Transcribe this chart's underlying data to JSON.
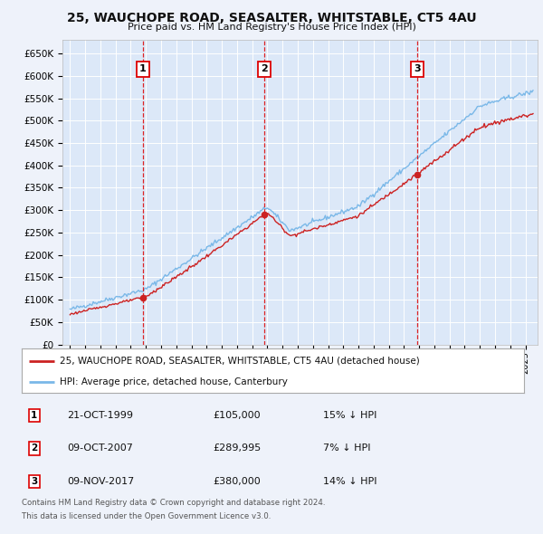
{
  "title": "25, WAUCHOPE ROAD, SEASALTER, WHITSTABLE, CT5 4AU",
  "subtitle": "Price paid vs. HM Land Registry's House Price Index (HPI)",
  "background_color": "#eef2fa",
  "plot_bg_color": "#dce8f8",
  "red_line_label": "25, WAUCHOPE ROAD, SEASALTER, WHITSTABLE, CT5 4AU (detached house)",
  "blue_line_label": "HPI: Average price, detached house, Canterbury",
  "sales": [
    {
      "num": 1,
      "date": "21-OCT-1999",
      "price": 105000,
      "pct": "15% ↓ HPI",
      "year": 1999.8
    },
    {
      "num": 2,
      "date": "09-OCT-2007",
      "price": 289995,
      "pct": "7% ↓ HPI",
      "year": 2007.77
    },
    {
      "num": 3,
      "date": "09-NOV-2017",
      "price": 380000,
      "pct": "14% ↓ HPI",
      "year": 2017.86
    }
  ],
  "footer1": "Contains HM Land Registry data © Crown copyright and database right 2024.",
  "footer2": "This data is licensed under the Open Government Licence v3.0.",
  "ylim": [
    0,
    680000
  ],
  "yticks": [
    0,
    50000,
    100000,
    150000,
    200000,
    250000,
    300000,
    350000,
    400000,
    450000,
    500000,
    550000,
    600000,
    650000
  ],
  "xlim_start": 1994.5,
  "xlim_end": 2025.8
}
